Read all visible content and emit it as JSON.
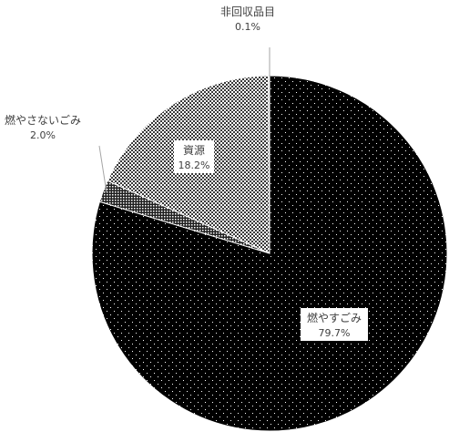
{
  "chart_data": {
    "type": "pie",
    "title": "",
    "slices": [
      {
        "label": "燃やすごみ",
        "value": 79.7,
        "value_label": "79.7%",
        "pattern": "dots-on-black",
        "color": "#000000"
      },
      {
        "label": "燃やさないごみ",
        "value": 2.0,
        "value_label": "2.0%",
        "pattern": "dense-dots",
        "color": "#5a5a5a"
      },
      {
        "label": "資源",
        "value": 18.2,
        "value_label": "18.2%",
        "pattern": "crosshatch",
        "color": "#b0b0b0"
      },
      {
        "label": "非回収品目",
        "value": 0.1,
        "value_label": "0.1%",
        "pattern": "solid",
        "color": "#ffffff"
      }
    ],
    "start_angle": "12 o'clock",
    "direction": "clockwise",
    "legend": "none",
    "data_labels": true
  }
}
